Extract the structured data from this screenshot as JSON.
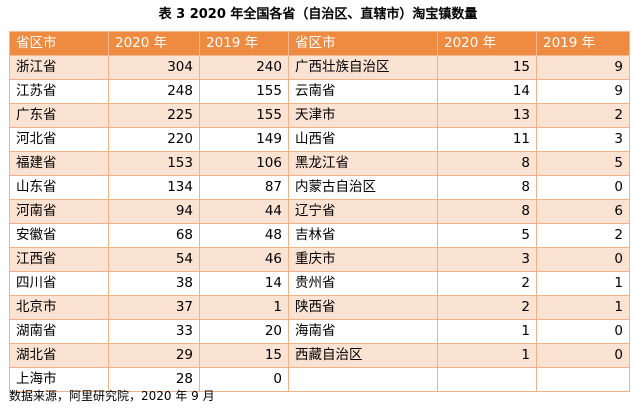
{
  "title": "表 3   2020 年全国各省（自治区、直辖市）淘宝镇数量",
  "headers": [
    "省区市",
    "2020 年",
    "2019 年",
    "省区市",
    "2020 年",
    "2019 年"
  ],
  "rows": [
    [
      "浙江省",
      "304",
      "240",
      "广西壮族自治区",
      "15",
      "9"
    ],
    [
      "江苏省",
      "248",
      "155",
      "云南省",
      "14",
      "9"
    ],
    [
      "广东省",
      "225",
      "155",
      "天津市",
      "13",
      "2"
    ],
    [
      "河北省",
      "220",
      "149",
      "山西省",
      "11",
      "3"
    ],
    [
      "福建省",
      "153",
      "106",
      "黑龙江省",
      "8",
      "5"
    ],
    [
      "山东省",
      "134",
      "87",
      "内蒙古自治区",
      "8",
      "0"
    ],
    [
      "河南省",
      "94",
      "44",
      "辽宁省",
      "8",
      "6"
    ],
    [
      "安徽省",
      "68",
      "48",
      "吉林省",
      "5",
      "2"
    ],
    [
      "江西省",
      "54",
      "46",
      "重庆市",
      "3",
      "0"
    ],
    [
      "四川省",
      "38",
      "14",
      "贵州省",
      "2",
      "1"
    ],
    [
      "北京市",
      "37",
      "1",
      "陕西省",
      "2",
      "1"
    ],
    [
      "湖南省",
      "33",
      "20",
      "海南省",
      "1",
      "0"
    ],
    [
      "湖北省",
      "29",
      "15",
      "西藏自治区",
      "1",
      "0"
    ],
    [
      "上海市",
      "28",
      "0",
      "",
      "",
      ""
    ]
  ],
  "source": "数据来源，阿里研究院，2020 年 9 月",
  "colors": {
    "header_bg": "#ef8a41",
    "stripe_bg": "#fbe3d4",
    "border": "#f2b287"
  }
}
